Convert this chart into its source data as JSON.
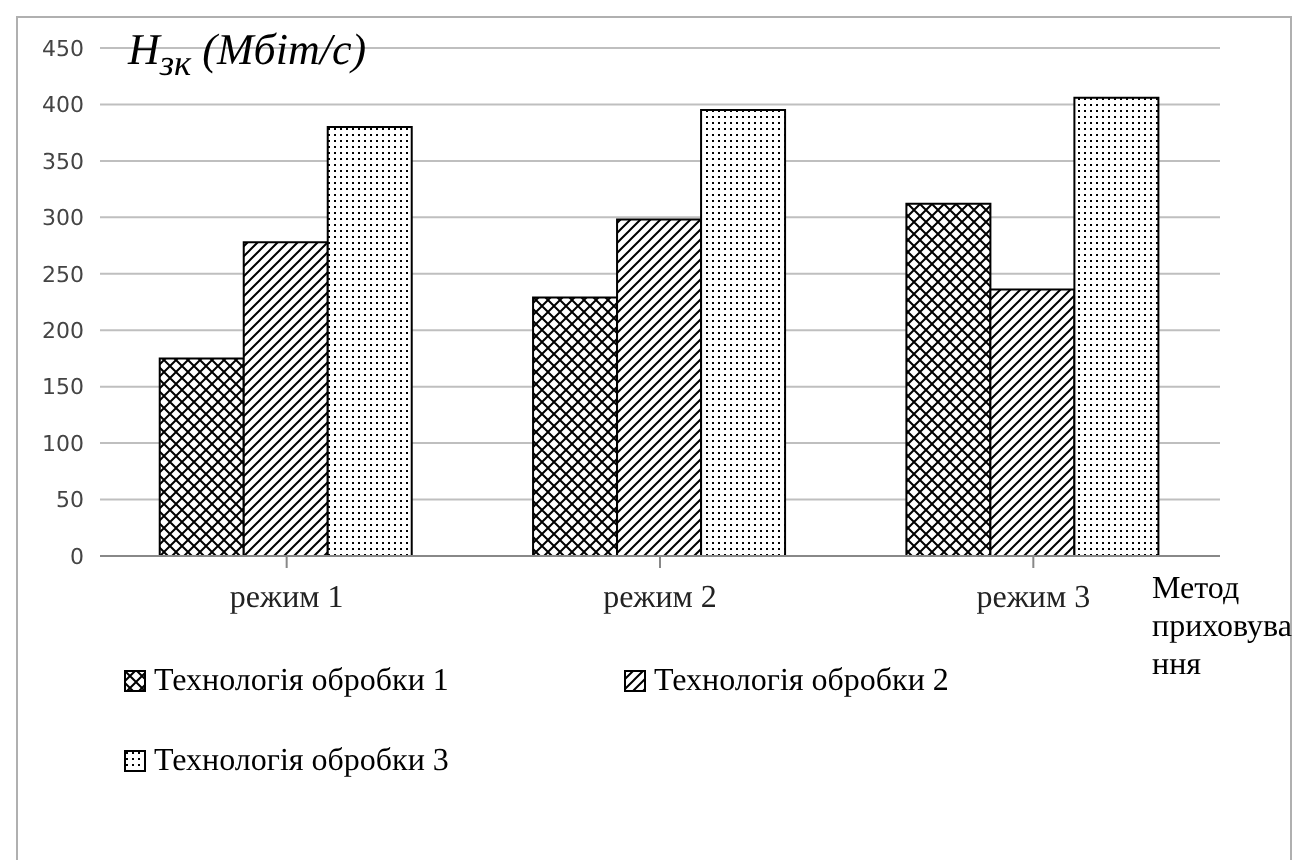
{
  "chart_data": {
    "type": "bar",
    "ylabel": "H$_{зк}$ (Мбіт/с)",
    "xlabel": "Метод приховування",
    "categories": [
      "режим 1",
      "режим 2",
      "режим 3"
    ],
    "series": [
      {
        "name": "Технологія обробки 1",
        "color": "#000000",
        "values": [
          175,
          229,
          312
        ]
      },
      {
        "name": "Технологія обробки 2",
        "color": "#000000",
        "values": [
          278,
          298,
          236
        ]
      },
      {
        "name": "Технологія обробки 3",
        "color": "#000000",
        "values": [
          380,
          395,
          406
        ]
      }
    ],
    "ylim": [
      0,
      450
    ],
    "yticks": [
      0,
      50,
      100,
      150,
      200,
      250,
      300,
      350,
      400,
      450
    ],
    "grid": "y",
    "legend": "bottom"
  }
}
